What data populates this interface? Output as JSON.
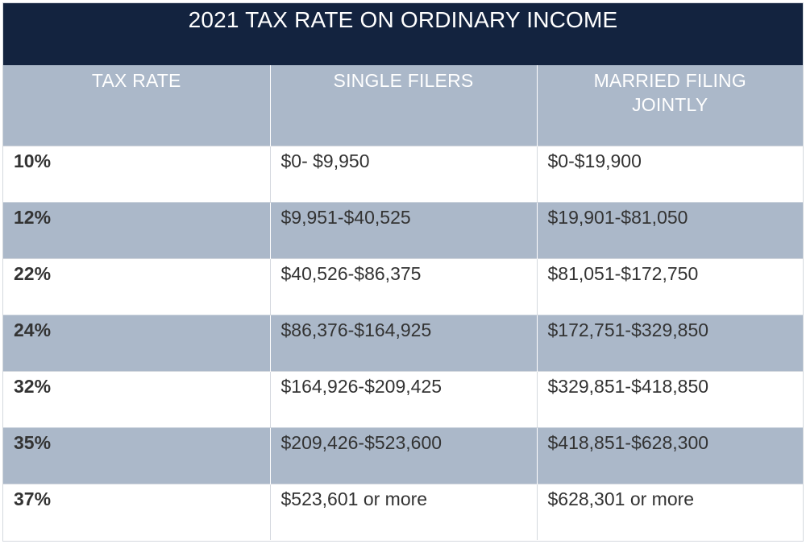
{
  "title": "2021 TAX RATE ON ORDINARY INCOME",
  "headers": [
    "TAX RATE",
    "SINGLE FILERS",
    "MARRIED FILING JOINTLY"
  ],
  "rows": [
    {
      "rate": "10%",
      "single": "$0- $9,950",
      "married": "$0-$19,900"
    },
    {
      "rate": "12%",
      "single": "$9,951-$40,525",
      "married": "$19,901-$81,050"
    },
    {
      "rate": "22%",
      "single": "$40,526-$86,375",
      "married": "$81,051-$172,750"
    },
    {
      "rate": "24%",
      "single": "$86,376-$164,925",
      "married": "$172,751-$329,850"
    },
    {
      "rate": "32%",
      "single": "$164,926-$209,425",
      "married": "$329,851-$418,850"
    },
    {
      "rate": "35%",
      "single": "$209,426-$523,600",
      "married": "$418,851-$628,300"
    },
    {
      "rate": "37%",
      "single": "$523,601 or more",
      "married": "$628,301 or more"
    }
  ],
  "colors": {
    "title_bg": "#13233f",
    "header_bg": "#abb8c9",
    "shaded_row_bg": "#abb8c9",
    "text": "#333333"
  }
}
